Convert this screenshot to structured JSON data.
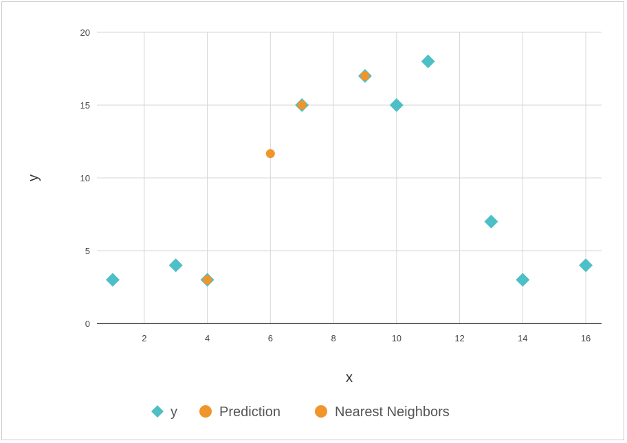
{
  "chart_data": {
    "type": "scatter",
    "xlabel": "x",
    "ylabel": "y",
    "xlim": [
      0.5,
      16.5
    ],
    "ylim": [
      0,
      20
    ],
    "x_ticks": [
      2,
      4,
      6,
      8,
      10,
      12,
      14,
      16
    ],
    "y_ticks": [
      0,
      5,
      10,
      15,
      20
    ],
    "grid": true,
    "legend_position": "bottom",
    "series": [
      {
        "name": "y",
        "marker": "diamond",
        "color": "#4dbfc6",
        "points": [
          {
            "x": 1,
            "y": 3
          },
          {
            "x": 3,
            "y": 4
          },
          {
            "x": 4,
            "y": 3
          },
          {
            "x": 7,
            "y": 15
          },
          {
            "x": 9,
            "y": 17
          },
          {
            "x": 10,
            "y": 15
          },
          {
            "x": 11,
            "y": 18
          },
          {
            "x": 13,
            "y": 7
          },
          {
            "x": 14,
            "y": 3
          },
          {
            "x": 16,
            "y": 4
          }
        ]
      },
      {
        "name": "Prediction",
        "marker": "circle",
        "color": "#f0952b",
        "points": [
          {
            "x": 6,
            "y": 11.67
          }
        ]
      },
      {
        "name": "Nearest Neighbors",
        "marker": "circle",
        "color": "#f0952b",
        "points": [
          {
            "x": 4,
            "y": 3
          },
          {
            "x": 7,
            "y": 15
          },
          {
            "x": 9,
            "y": 17
          }
        ]
      }
    ]
  }
}
